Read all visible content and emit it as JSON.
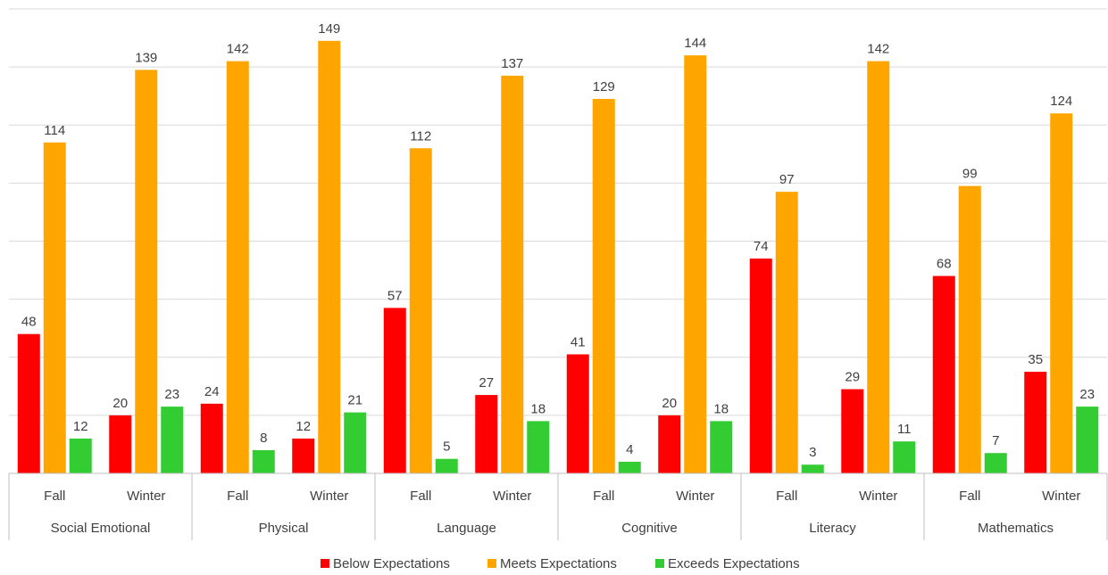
{
  "chart_data": {
    "type": "bar",
    "title": "",
    "xlabel": "",
    "ylabel": "",
    "ylim": [
      0,
      160
    ],
    "grid": true,
    "legend_position": "bottom",
    "groups": [
      "Social Emotional",
      "Physical",
      "Language",
      "Cognitive",
      "Literacy",
      "Mathematics"
    ],
    "subcategories": [
      "Fall",
      "Winter"
    ],
    "series": [
      {
        "name": "Below Expectations",
        "color": "#ff0000",
        "values": [
          48,
          20,
          24,
          12,
          57,
          27,
          41,
          20,
          74,
          29,
          68,
          35
        ]
      },
      {
        "name": "Meets Expectations",
        "color": "#ffa500",
        "values": [
          114,
          139,
          142,
          149,
          112,
          137,
          129,
          144,
          97,
          142,
          99,
          124
        ]
      },
      {
        "name": "Exceeds Expectations",
        "color": "#33cc33",
        "values": [
          12,
          23,
          8,
          21,
          5,
          18,
          4,
          18,
          3,
          11,
          7,
          23
        ]
      }
    ]
  }
}
